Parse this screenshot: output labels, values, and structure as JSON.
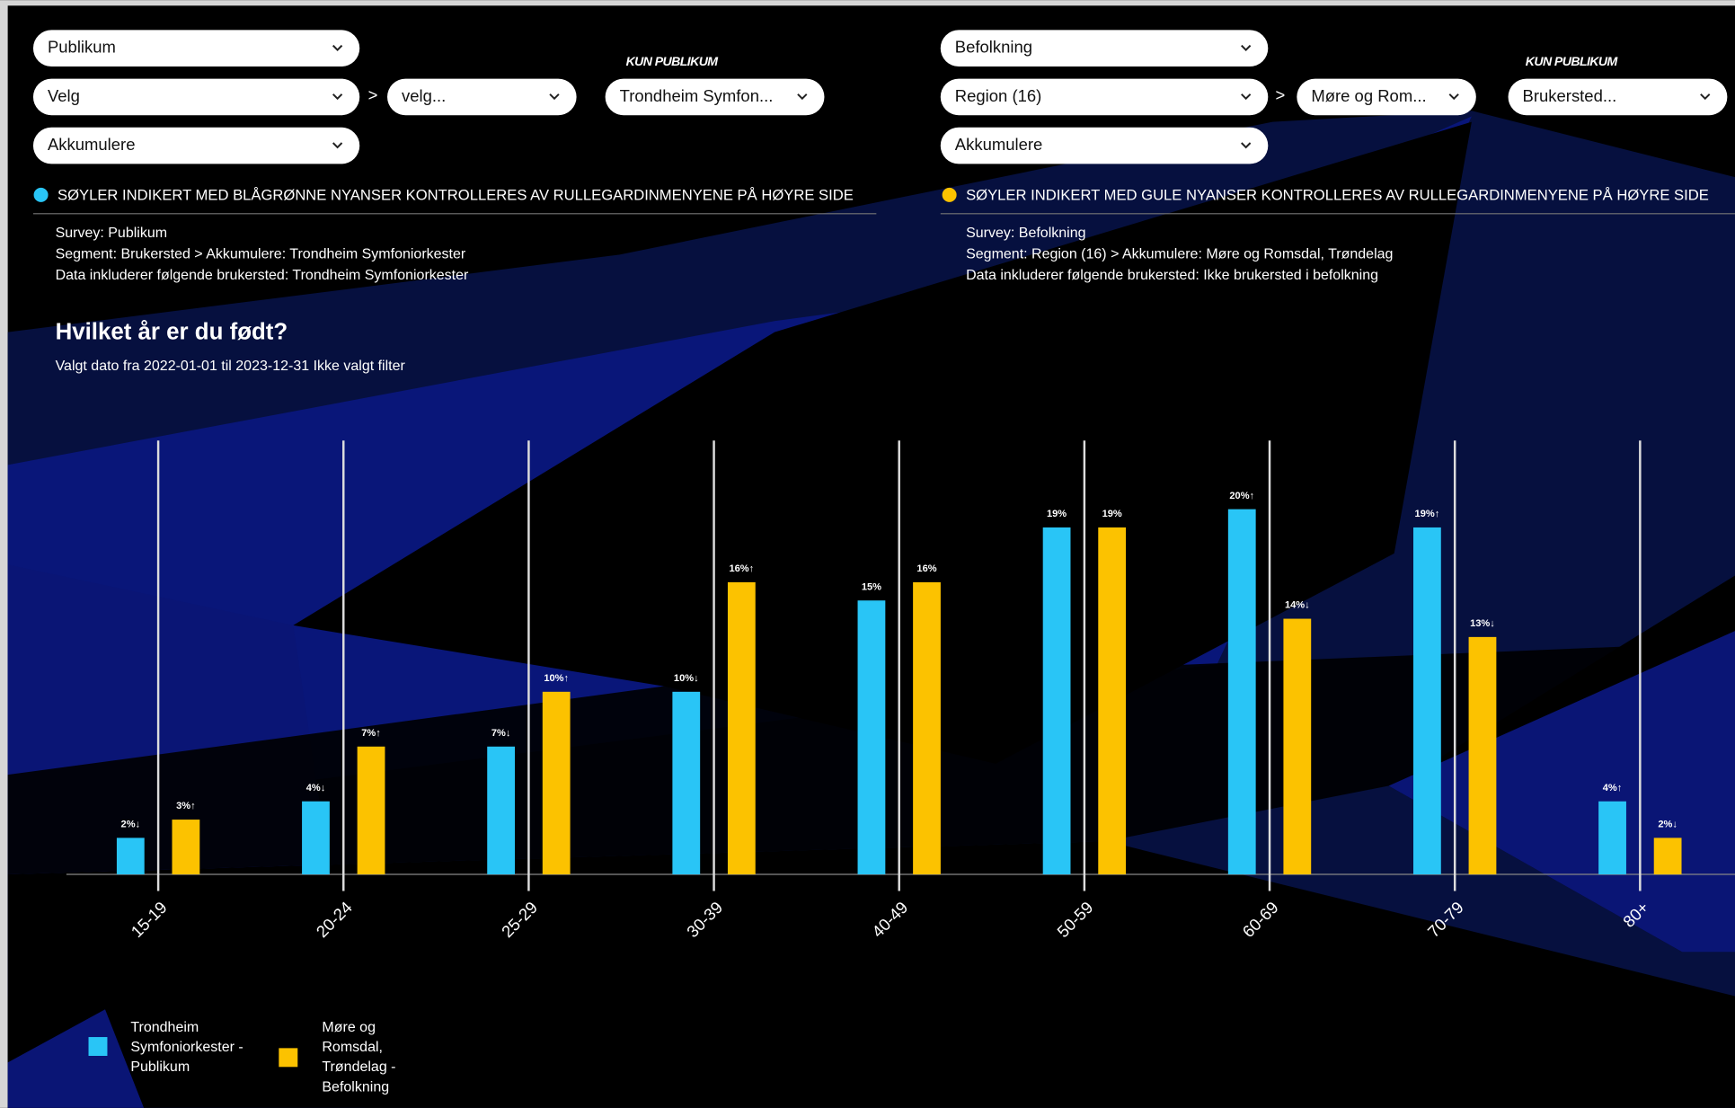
{
  "left_panel": {
    "dropdowns": [
      "Publikum",
      "Velg",
      "velg...",
      "Akkumulere"
    ],
    "separator": ">",
    "kun_label": "KUN PUBLIKUM",
    "kun_dropdown": "Trondheim Symfon...",
    "note": "SØYLER INDIKERT MED BLÅGRØNNE NYANSER KONTROLLERES AV RULLEGARDINMENYENE PÅ HØYRE SIDE",
    "info": [
      "Survey: Publikum",
      "Segment: Brukersted > Akkumulere: Trondheim Symfoniorkester",
      "Data inkluderer følgende brukersted: Trondheim Symfoniorkester"
    ]
  },
  "right_panel": {
    "dropdowns": [
      "Befolkning",
      "Region (16)",
      "Møre og Rom...",
      "Akkumulere"
    ],
    "separator": ">",
    "kun_label": "KUN PUBLIKUM",
    "kun_dropdown": "Brukersted...",
    "note": "SØYLER INDIKERT MED GULE NYANSER KONTROLLERES AV RULLEGARDINMENYENE PÅ HØYRE SIDE",
    "info": [
      "Survey: Befolkning",
      "Segment: Region (16) > Akkumulere: Møre og Romsdal, Trøndelag",
      "Data inkluderer følgende brukersted: Ikke brukersted i befolkning"
    ]
  },
  "chart_data": {
    "type": "bar",
    "title": "Hvilket år er du født?",
    "subtitle": "Valgt dato fra 2022-01-01 til 2023-12-31 Ikke valgt filter",
    "categories": [
      "15-19",
      "20-24",
      "25-29",
      "30-39",
      "40-49",
      "50-59",
      "60-69",
      "70-79",
      "80+"
    ],
    "series": [
      {
        "name": "Trondheim Symfoniorkester - Publikum",
        "color": "#29c5f6",
        "values": [
          2,
          4,
          7,
          10,
          15,
          19,
          20,
          19,
          4
        ],
        "value_labels": [
          "2%↓",
          "4%↓",
          "7%↓",
          "10%↓",
          "15%",
          "19%",
          "20%↑",
          "19%↑",
          "4%↑"
        ]
      },
      {
        "name": "Møre og Romsdal, Trøndelag - Befolkning",
        "color": "#fcc200",
        "values": [
          3,
          7,
          10,
          16,
          16,
          19,
          14,
          13,
          2
        ],
        "value_labels": [
          "3%↑",
          "7%↑",
          "10%↑",
          "16%↑",
          "16%",
          "19%",
          "14%↓",
          "13%↓",
          "2%↓"
        ]
      }
    ]
  }
}
